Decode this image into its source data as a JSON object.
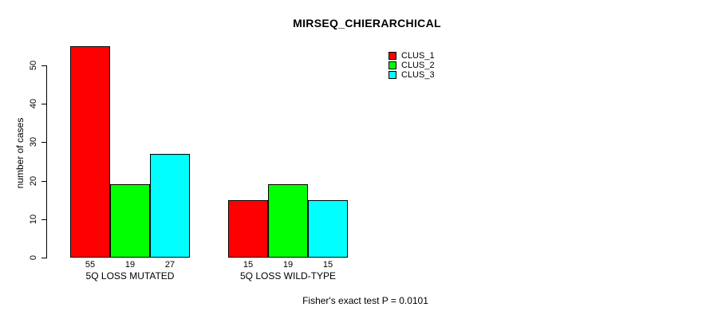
{
  "chart_data": {
    "type": "bar",
    "title": "MIRSEQ_CHIERARCHICAL",
    "ylabel": "number of cases",
    "xlabel": "",
    "ylim": [
      0,
      57
    ],
    "yticks": [
      0,
      10,
      20,
      30,
      40,
      50
    ],
    "grid": false,
    "legend_position": "top-right",
    "categories": [
      "5Q LOSS MUTATED",
      "5Q LOSS WILD-TYPE"
    ],
    "series": [
      {
        "name": "CLUS_1",
        "color": "#FF0000",
        "values": [
          55,
          15
        ]
      },
      {
        "name": "CLUS_2",
        "color": "#00FF00",
        "values": [
          19,
          19
        ]
      },
      {
        "name": "CLUS_3",
        "color": "#00FFFF",
        "values": [
          27,
          15
        ]
      }
    ],
    "show_value_labels": true,
    "annotation": "Fisher's exact test P = 0.0101",
    "colors": {
      "background": "#FFFFFF",
      "axis": "#000000",
      "bar_border": "#000000",
      "text": "#000000"
    }
  }
}
